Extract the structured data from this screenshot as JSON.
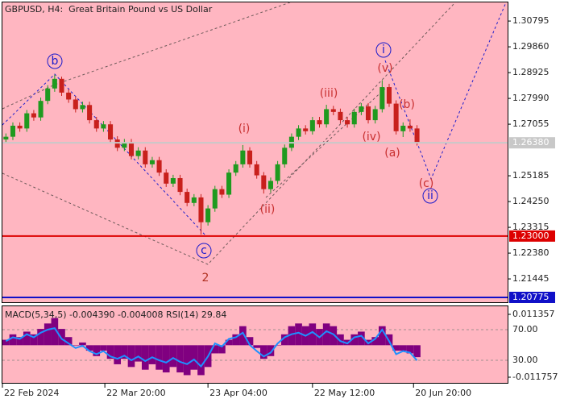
{
  "chart_data": [
    {
      "type": "candlestick",
      "title": "GBPUSD, H4:  Great Britain Pound vs US Dollar",
      "open": [
        1.265,
        1.266,
        1.27,
        1.269,
        1.2745,
        1.273,
        1.279,
        1.2835,
        1.287,
        1.282,
        1.2795,
        1.276,
        1.2775,
        1.272,
        1.269,
        1.2705,
        1.265,
        1.262,
        1.264,
        1.259,
        1.261,
        1.256,
        1.2575,
        1.253,
        1.249,
        1.251,
        1.246,
        1.242,
        1.244,
        1.235,
        1.24,
        1.247,
        1.245,
        1.253,
        1.256,
        1.261,
        1.256,
        1.252,
        1.247,
        1.25,
        1.256,
        1.262,
        1.266,
        1.269,
        1.268,
        1.272,
        1.2705,
        1.276,
        1.275,
        1.272,
        1.2705,
        1.275,
        1.277,
        1.272,
        1.276,
        1.284,
        1.278,
        1.268,
        1.27,
        1.269
      ],
      "high": [
        1.2672,
        1.2712,
        1.2712,
        1.2757,
        1.2757,
        1.2802,
        1.2847,
        1.2885,
        1.2878,
        1.2832,
        1.2807,
        1.2787,
        1.2787,
        1.2732,
        1.2717,
        1.2717,
        1.2662,
        1.2652,
        1.2652,
        1.2622,
        1.2622,
        1.2587,
        1.2587,
        1.2542,
        1.2522,
        1.2522,
        1.2472,
        1.2452,
        1.2452,
        1.2412,
        1.2482,
        1.2482,
        1.2542,
        1.2572,
        1.263,
        1.2622,
        1.2572,
        1.2532,
        1.2512,
        1.2572,
        1.2632,
        1.2672,
        1.2702,
        1.2702,
        1.2732,
        1.2732,
        1.2776,
        1.2772,
        1.2762,
        1.2732,
        1.2762,
        1.2782,
        1.2782,
        1.2772,
        1.2865,
        1.2852,
        1.2792,
        1.2712,
        1.2723,
        1.2702
      ],
      "low": [
        1.2638,
        1.2648,
        1.2678,
        1.2678,
        1.2718,
        1.2718,
        1.2778,
        1.2823,
        1.2808,
        1.2783,
        1.2748,
        1.2748,
        1.2708,
        1.2678,
        1.2678,
        1.2638,
        1.2608,
        1.2608,
        1.2578,
        1.2578,
        1.2548,
        1.2548,
        1.2518,
        1.2478,
        1.2478,
        1.2448,
        1.2408,
        1.2408,
        1.2305,
        1.2338,
        1.2388,
        1.2438,
        1.2438,
        1.2518,
        1.2548,
        1.2548,
        1.2508,
        1.2454,
        1.2458,
        1.2488,
        1.2548,
        1.2608,
        1.2648,
        1.2668,
        1.2668,
        1.2693,
        1.2693,
        1.2738,
        1.2708,
        1.2693,
        1.2693,
        1.2738,
        1.2708,
        1.2708,
        1.2748,
        1.2768,
        1.2668,
        1.2659,
        1.2678,
        1.2628
      ],
      "close": [
        1.266,
        1.27,
        1.269,
        1.2745,
        1.273,
        1.279,
        1.2835,
        1.287,
        1.282,
        1.2795,
        1.276,
        1.2775,
        1.272,
        1.269,
        1.2705,
        1.265,
        1.262,
        1.264,
        1.259,
        1.261,
        1.256,
        1.2575,
        1.253,
        1.249,
        1.251,
        1.246,
        1.242,
        1.244,
        1.235,
        1.24,
        1.247,
        1.245,
        1.253,
        1.256,
        1.261,
        1.256,
        1.252,
        1.247,
        1.25,
        1.256,
        1.262,
        1.266,
        1.269,
        1.268,
        1.272,
        1.2705,
        1.276,
        1.275,
        1.272,
        1.2705,
        1.275,
        1.277,
        1.272,
        1.276,
        1.284,
        1.278,
        1.268,
        1.27,
        1.269,
        1.2638
      ],
      "up_color": "#1f9a1f",
      "down_color": "#c8201c",
      "ylim": [
        1.2057,
        1.3147
      ],
      "yticks": [
        1.30795,
        {
          "value": 1.2986,
          "label": "1.29860"
        },
        1.28925,
        {
          "value": 1.2799,
          "label": "1.27990"
        },
        1.27055,
        1.25185,
        {
          "value": 1.2425,
          "label": "1.24250"
        },
        1.23315,
        {
          "value": 1.2238,
          "label": "1.22380"
        },
        1.21445
      ],
      "xlim": [
        0,
        72.5
      ],
      "xticks": [
        {
          "value": 0,
          "label": "22 Feb 2024"
        },
        {
          "value": 14.7,
          "label": "22 Mar 20:00"
        },
        {
          "value": 29.5,
          "label": "23 Apr 04:00"
        },
        {
          "value": 44.5,
          "label": "22 May 12:00"
        },
        {
          "value": 59,
          "label": "20 Jun 20:00"
        }
      ],
      "levels": [
        {
          "value": 1.2638,
          "label": "1.26380",
          "color": "#c8c8c8"
        },
        {
          "value": 1.23,
          "label": "1.23000",
          "color": "#dd0000"
        },
        {
          "value": 1.20775,
          "label": "1.20775",
          "color": "#1010c8"
        }
      ],
      "wave_labels": [
        {
          "text": "b",
          "color": "#1a1acc",
          "circled": true
        },
        {
          "text": "c",
          "color": "#1a1acc",
          "circled": true
        },
        {
          "text": "2",
          "color": "#b03020",
          "circled": false
        },
        {
          "text": "(i)",
          "color": "#c83030",
          "circled": false
        },
        {
          "text": "(ii)",
          "color": "#c83030",
          "circled": false
        },
        {
          "text": "(iii)",
          "color": "#c83030",
          "circled": false
        },
        {
          "text": "(iv)",
          "color": "#c83030",
          "circled": false
        },
        {
          "text": "(v)",
          "color": "#c83030",
          "circled": false
        },
        {
          "text": "i",
          "color": "#1a1acc",
          "circled": true
        },
        {
          "text": "(a)",
          "color": "#c83030",
          "circled": false
        },
        {
          "text": "(b)",
          "color": "#c83030",
          "circled": false
        },
        {
          "text": "(c)",
          "color": "#c83030",
          "circled": false
        },
        {
          "text": "ii",
          "color": "#1a1acc",
          "circled": true
        }
      ]
    },
    {
      "type": "macd-rsi",
      "title": "MACD(5,34,5) -0.004390 -0.004008 RSI(14) 29.84",
      "histogram": {
        "color": "#800080",
        "values": [
          0.002,
          0.004,
          0.003,
          0.005,
          0.004,
          0.006,
          0.008,
          0.01,
          0.006,
          0.003,
          0.0,
          0.001,
          -0.002,
          -0.004,
          -0.002,
          -0.005,
          -0.007,
          -0.005,
          -0.008,
          -0.006,
          -0.009,
          -0.007,
          -0.009,
          -0.01,
          -0.008,
          -0.01,
          -0.011,
          -0.009,
          -0.011,
          -0.008,
          -0.003,
          -0.003,
          0.002,
          0.004,
          0.007,
          0.003,
          -0.001,
          -0.005,
          -0.004,
          0.0,
          0.004,
          0.007,
          0.008,
          0.007,
          0.008,
          0.006,
          0.008,
          0.007,
          0.004,
          0.002,
          0.004,
          0.005,
          0.002,
          0.003,
          0.007,
          0.004,
          -0.002,
          -0.002,
          -0.003,
          -0.00439
        ]
      },
      "line": {
        "color": "#1e90ff",
        "values": [
          55,
          60,
          58,
          64,
          60,
          66,
          70,
          72,
          58,
          52,
          46,
          49,
          42,
          38,
          42,
          35,
          32,
          36,
          30,
          35,
          29,
          34,
          30,
          27,
          33,
          28,
          25,
          31,
          22,
          35,
          52,
          48,
          58,
          60,
          66,
          50,
          42,
          35,
          40,
          52,
          60,
          64,
          66,
          62,
          67,
          60,
          68,
          64,
          55,
          52,
          60,
          62,
          52,
          58,
          70,
          55,
          38,
          42,
          40,
          29.84
        ]
      },
      "ylim": [
        -0.01413,
        0.01432
      ],
      "yticks": [
        0.011357,
        -0.011757
      ],
      "y2lim": [
        -0.5,
        100.5
      ],
      "y2ticks": [
        {
          "value": 70,
          "label": "70.00"
        },
        {
          "value": 30,
          "label": "30.00"
        }
      ]
    }
  ]
}
